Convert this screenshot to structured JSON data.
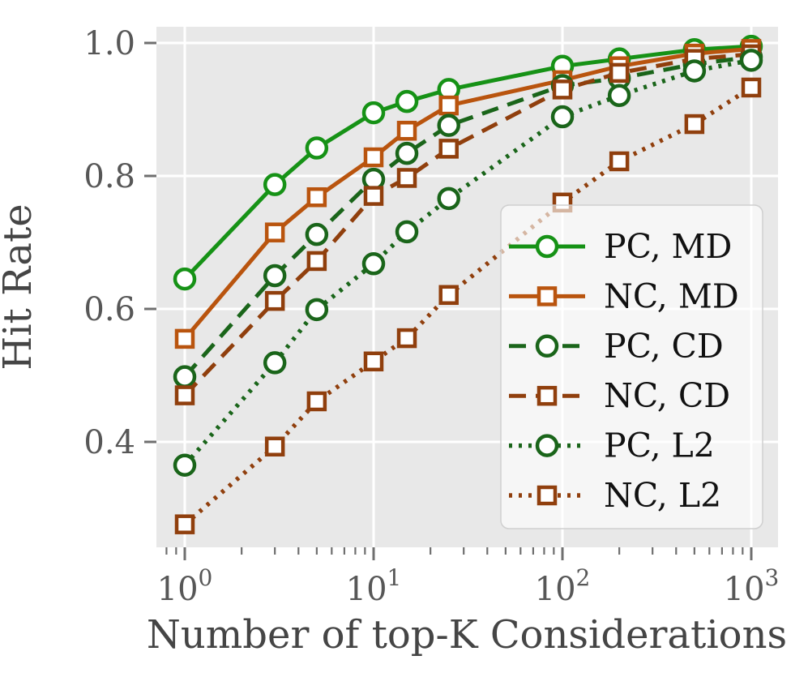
{
  "chart_data": {
    "type": "line",
    "x_scale": "log",
    "grid": true,
    "xlabel": "Number of top-K Considerations",
    "ylabel": "Hit Rate",
    "x": [
      1,
      3,
      5,
      10,
      15,
      25,
      100,
      200,
      500,
      1000
    ],
    "x_tick_exponents": [
      0,
      1,
      2,
      3
    ],
    "y_ticks": [
      0.4,
      0.6,
      0.8,
      1.0
    ],
    "ylim": [
      0.242,
      1.024
    ],
    "xlim": [
      0.71,
      1390
    ],
    "legend_position": "lower right",
    "series": [
      {
        "name": "PC, MD",
        "color": "#169216",
        "line": "solid",
        "marker": "circle",
        "values": [
          0.645,
          0.787,
          0.842,
          0.895,
          0.912,
          0.93,
          0.965,
          0.976,
          0.99,
          0.995
        ]
      },
      {
        "name": "NC, MD",
        "color": "#b9540e",
        "line": "solid",
        "marker": "square",
        "values": [
          0.555,
          0.715,
          0.768,
          0.828,
          0.868,
          0.906,
          0.944,
          0.965,
          0.984,
          0.991
        ]
      },
      {
        "name": "PC, CD",
        "color": "#1a651a",
        "line": "dashed",
        "marker": "circle",
        "values": [
          0.498,
          0.65,
          0.712,
          0.795,
          0.834,
          0.876,
          0.936,
          0.947,
          0.968,
          0.979
        ]
      },
      {
        "name": "NC, CD",
        "color": "#903f0d",
        "line": "dashed",
        "marker": "square",
        "values": [
          0.47,
          0.612,
          0.672,
          0.77,
          0.797,
          0.841,
          0.93,
          0.955,
          0.976,
          0.983
        ]
      },
      {
        "name": "PC, L2",
        "color": "#1a651a",
        "line": "dotted",
        "marker": "circle",
        "values": [
          0.365,
          0.519,
          0.599,
          0.668,
          0.716,
          0.766,
          0.889,
          0.921,
          0.958,
          0.974
        ]
      },
      {
        "name": "NC, L2",
        "color": "#903f0d",
        "line": "dotted",
        "marker": "square",
        "values": [
          0.276,
          0.393,
          0.461,
          0.521,
          0.556,
          0.621,
          0.76,
          0.822,
          0.878,
          0.933
        ]
      }
    ],
    "colors": {
      "plot_bg": "#e8e8e8",
      "grid": "#ffffff",
      "tick": "#6f6f6f",
      "tick_label": "#575757",
      "axis_label": "#454545",
      "legend_text": "#111111",
      "legend_border": "#cfcfcf",
      "marker_fill": "#ffffff"
    }
  }
}
